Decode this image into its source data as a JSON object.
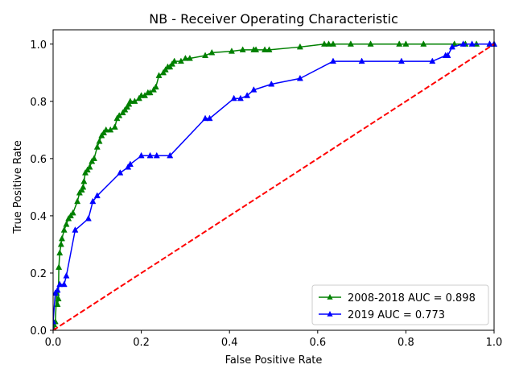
{
  "chart_data": {
    "type": "line",
    "title": "NB - Receiver Operating Characteristic",
    "xlabel": "False Positive Rate",
    "ylabel": "True Positive Rate",
    "xlim": [
      0.0,
      1.0
    ],
    "ylim": [
      0.0,
      1.05
    ],
    "xticks": [
      0.0,
      0.2,
      0.4,
      0.6,
      0.8,
      1.0
    ],
    "yticks": [
      0.0,
      0.2,
      0.4,
      0.6,
      0.8,
      1.0
    ],
    "xtick_labels": [
      "0.0",
      "0.2",
      "0.4",
      "0.6",
      "0.8",
      "1.0"
    ],
    "ytick_labels": [
      "0.0",
      "0.2",
      "0.4",
      "0.6",
      "0.8",
      "1.0"
    ],
    "grid": false,
    "legend_position": "lower-right",
    "series": [
      {
        "name": "2008-2018 AUC = 0.898",
        "color": "#008000",
        "marker": "triangle-up",
        "x": [
          0.0,
          0.0,
          0.002,
          0.005,
          0.008,
          0.01,
          0.012,
          0.013,
          0.015,
          0.018,
          0.02,
          0.025,
          0.03,
          0.035,
          0.04,
          0.045,
          0.055,
          0.06,
          0.065,
          0.068,
          0.07,
          0.073,
          0.078,
          0.083,
          0.088,
          0.093,
          0.1,
          0.105,
          0.11,
          0.115,
          0.12,
          0.13,
          0.14,
          0.145,
          0.15,
          0.158,
          0.163,
          0.168,
          0.172,
          0.175,
          0.185,
          0.195,
          0.2,
          0.208,
          0.215,
          0.22,
          0.228,
          0.233,
          0.24,
          0.25,
          0.255,
          0.26,
          0.265,
          0.27,
          0.275,
          0.29,
          0.3,
          0.31,
          0.345,
          0.36,
          0.405,
          0.43,
          0.455,
          0.46,
          0.48,
          0.49,
          0.56,
          0.615,
          0.625,
          0.635,
          0.675,
          0.72,
          0.785,
          0.8,
          0.84,
          0.91,
          0.935,
          0.96,
          0.99,
          1.0
        ],
        "y": [
          0.0,
          0.01,
          0.02,
          0.03,
          0.13,
          0.09,
          0.11,
          0.22,
          0.27,
          0.3,
          0.32,
          0.35,
          0.37,
          0.39,
          0.4,
          0.41,
          0.45,
          0.48,
          0.49,
          0.5,
          0.52,
          0.55,
          0.56,
          0.57,
          0.59,
          0.6,
          0.64,
          0.66,
          0.68,
          0.69,
          0.7,
          0.7,
          0.71,
          0.74,
          0.75,
          0.76,
          0.77,
          0.78,
          0.79,
          0.8,
          0.8,
          0.81,
          0.82,
          0.82,
          0.83,
          0.83,
          0.84,
          0.85,
          0.89,
          0.9,
          0.91,
          0.92,
          0.92,
          0.93,
          0.94,
          0.94,
          0.95,
          0.95,
          0.96,
          0.97,
          0.975,
          0.98,
          0.98,
          0.98,
          0.98,
          0.98,
          0.99,
          1.0,
          1.0,
          1.0,
          1.0,
          1.0,
          1.0,
          1.0,
          1.0,
          1.0,
          1.0,
          1.0,
          1.0,
          1.0
        ]
      },
      {
        "name": "2019 AUC = 0.773",
        "color": "#0000ff",
        "marker": "triangle-up",
        "x": [
          0.0,
          0.0,
          0.005,
          0.01,
          0.015,
          0.025,
          0.03,
          0.05,
          0.08,
          0.09,
          0.1,
          0.152,
          0.17,
          0.175,
          0.2,
          0.22,
          0.235,
          0.265,
          0.345,
          0.355,
          0.41,
          0.425,
          0.44,
          0.455,
          0.495,
          0.56,
          0.635,
          0.7,
          0.79,
          0.86,
          0.89,
          0.895,
          0.905,
          0.93,
          0.95,
          0.99,
          1.0
        ],
        "y": [
          0.0,
          0.03,
          0.13,
          0.14,
          0.16,
          0.16,
          0.19,
          0.35,
          0.39,
          0.45,
          0.47,
          0.55,
          0.57,
          0.58,
          0.61,
          0.61,
          0.61,
          0.61,
          0.74,
          0.74,
          0.81,
          0.81,
          0.82,
          0.84,
          0.86,
          0.88,
          0.94,
          0.94,
          0.94,
          0.94,
          0.96,
          0.96,
          0.99,
          1.0,
          1.0,
          1.0,
          1.0
        ]
      },
      {
        "name": "",
        "color": "#ff0000",
        "style": "dashed",
        "marker": "none",
        "x": [
          0.0,
          1.0
        ],
        "y": [
          0.0,
          1.0
        ]
      }
    ]
  }
}
